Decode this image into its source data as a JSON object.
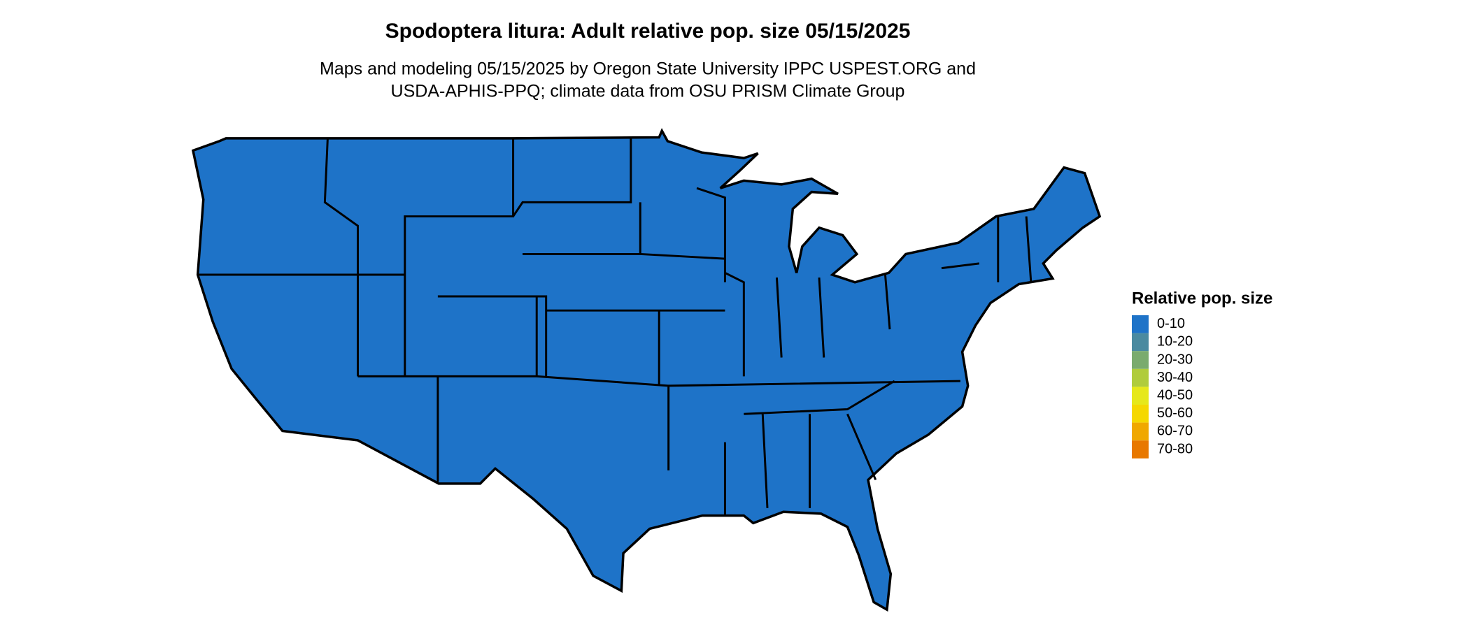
{
  "title": "Spodoptera litura: Adult relative pop. size 05/15/2025",
  "subtitle_lines": [
    "Maps and modeling 05/15/2025 by Oregon State University IPPC USPEST.ORG and",
    "USDA-APHIS-PPQ; climate data from OSU PRISM Climate Group"
  ],
  "legend": {
    "title": "Relative pop. size",
    "items": [
      {
        "label": "0-10",
        "color": "#1e73c8"
      },
      {
        "label": "10-20",
        "color": "#4a8aa0"
      },
      {
        "label": "20-30",
        "color": "#7aab6e"
      },
      {
        "label": "30-40",
        "color": "#b0cc3c"
      },
      {
        "label": "40-50",
        "color": "#e6e81a"
      },
      {
        "label": "50-60",
        "color": "#f5d800"
      },
      {
        "label": "60-70",
        "color": "#f0a800"
      },
      {
        "label": "70-80",
        "color": "#e87800"
      }
    ]
  }
}
